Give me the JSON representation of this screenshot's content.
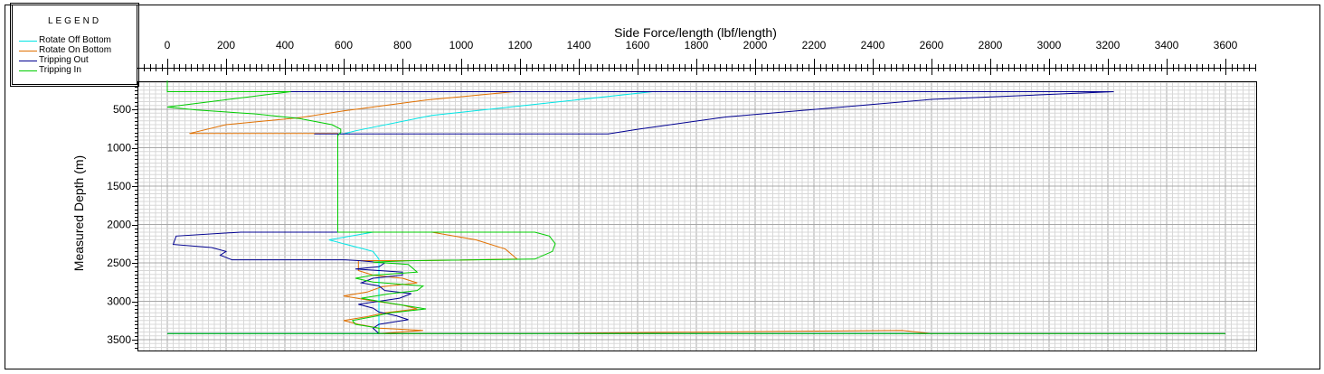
{
  "chart_data": {
    "type": "line",
    "title": "Side Force/length (lbf/length)",
    "xlabel": "Side Force/length (lbf/length)",
    "ylabel": "Measured Depth (m)",
    "x_axis_position": "top",
    "y_inverted": true,
    "xlim": [
      -80,
      3720
    ],
    "ylim": [
      3600,
      120
    ],
    "x_ticks": [
      0,
      200,
      400,
      600,
      800,
      1000,
      1200,
      1400,
      1600,
      1800,
      2000,
      2200,
      2400,
      2600,
      2800,
      3000,
      3200,
      3400,
      3600
    ],
    "y_ticks": [
      500,
      1000,
      1500,
      2000,
      2500,
      3000,
      3500
    ],
    "grid": true,
    "legend": {
      "title": "LEGEND",
      "placement": "top-left, outside plot",
      "entries": [
        "Rotate Off Bottom",
        "Rotate On Bottom",
        "Tripping Out",
        "Tripping In"
      ]
    },
    "series": [
      {
        "name": "Rotate Off Bottom",
        "color": "#00e5e5",
        "points": [
          [
            0,
            125
          ],
          [
            0,
            270
          ],
          [
            140,
            270
          ],
          [
            620,
            270
          ],
          [
            1650,
            270
          ],
          [
            900,
            580
          ],
          [
            640,
            780
          ],
          [
            600,
            820
          ],
          [
            580,
            820
          ],
          [
            580,
            2100
          ],
          [
            700,
            2100
          ],
          [
            550,
            2200
          ],
          [
            600,
            2250
          ],
          [
            700,
            2350
          ],
          [
            720,
            2450
          ],
          [
            720,
            2550
          ],
          [
            720,
            2800
          ],
          [
            720,
            3000
          ],
          [
            720,
            3200
          ],
          [
            720,
            3350
          ],
          [
            720,
            3420
          ],
          [
            0,
            3420
          ],
          [
            1200,
            3420
          ],
          [
            2450,
            3420
          ],
          [
            3600,
            3420
          ]
        ]
      },
      {
        "name": "Rotate On Bottom",
        "color": "#e07000",
        "points": [
          [
            1180,
            270
          ],
          [
            880,
            380
          ],
          [
            600,
            520
          ],
          [
            450,
            610
          ],
          [
            200,
            700
          ],
          [
            75,
            815
          ],
          [
            580,
            815
          ],
          [
            580,
            2100
          ],
          [
            900,
            2100
          ],
          [
            1050,
            2200
          ],
          [
            1150,
            2320
          ],
          [
            1190,
            2450
          ],
          [
            870,
            2470
          ],
          [
            650,
            2470
          ],
          [
            650,
            2600
          ],
          [
            700,
            2660
          ],
          [
            800,
            2700
          ],
          [
            850,
            2760
          ],
          [
            730,
            2810
          ],
          [
            680,
            2880
          ],
          [
            600,
            2930
          ],
          [
            690,
            2990
          ],
          [
            800,
            3050
          ],
          [
            850,
            3100
          ],
          [
            740,
            3150
          ],
          [
            680,
            3200
          ],
          [
            600,
            3250
          ],
          [
            650,
            3300
          ],
          [
            720,
            3350
          ],
          [
            870,
            3380
          ],
          [
            720,
            3420
          ],
          [
            1200,
            3420
          ],
          [
            2500,
            3380
          ],
          [
            2600,
            3420
          ],
          [
            3600,
            3420
          ]
        ]
      },
      {
        "name": "Tripping Out",
        "color": "#000090",
        "points": [
          [
            30,
            270
          ],
          [
            200,
            270
          ],
          [
            3220,
            270
          ],
          [
            2600,
            370
          ],
          [
            1900,
            600
          ],
          [
            1600,
            760
          ],
          [
            1500,
            820
          ],
          [
            950,
            820
          ],
          [
            600,
            820
          ],
          [
            500,
            820
          ],
          [
            580,
            820
          ],
          [
            580,
            2100
          ],
          [
            250,
            2100
          ],
          [
            30,
            2150
          ],
          [
            20,
            2260
          ],
          [
            150,
            2300
          ],
          [
            200,
            2350
          ],
          [
            180,
            2400
          ],
          [
            220,
            2460
          ],
          [
            600,
            2460
          ],
          [
            650,
            2470
          ],
          [
            740,
            2500
          ],
          [
            720,
            2550
          ],
          [
            640,
            2580
          ],
          [
            800,
            2620
          ],
          [
            800,
            2660
          ],
          [
            700,
            2700
          ],
          [
            660,
            2760
          ],
          [
            720,
            2800
          ],
          [
            740,
            2860
          ],
          [
            830,
            2900
          ],
          [
            790,
            2960
          ],
          [
            720,
            3000
          ],
          [
            650,
            3040
          ],
          [
            700,
            3090
          ],
          [
            720,
            3140
          ],
          [
            780,
            3190
          ],
          [
            820,
            3240
          ],
          [
            720,
            3300
          ],
          [
            700,
            3350
          ],
          [
            720,
            3420
          ],
          [
            0,
            3420
          ],
          [
            3600,
            3420
          ]
        ]
      },
      {
        "name": "Tripping In",
        "color": "#00cc00",
        "points": [
          [
            0,
            125
          ],
          [
            0,
            270
          ],
          [
            420,
            270
          ],
          [
            0,
            470
          ],
          [
            100,
            510
          ],
          [
            300,
            560
          ],
          [
            450,
            620
          ],
          [
            560,
            700
          ],
          [
            590,
            760
          ],
          [
            590,
            800
          ],
          [
            580,
            840
          ],
          [
            580,
            2100
          ],
          [
            1250,
            2100
          ],
          [
            1300,
            2150
          ],
          [
            1320,
            2250
          ],
          [
            1310,
            2350
          ],
          [
            1250,
            2450
          ],
          [
            840,
            2470
          ],
          [
            700,
            2490
          ],
          [
            820,
            2520
          ],
          [
            850,
            2620
          ],
          [
            700,
            2660
          ],
          [
            640,
            2700
          ],
          [
            700,
            2750
          ],
          [
            870,
            2800
          ],
          [
            850,
            2860
          ],
          [
            760,
            2900
          ],
          [
            660,
            2960
          ],
          [
            720,
            3000
          ],
          [
            800,
            3050
          ],
          [
            880,
            3100
          ],
          [
            760,
            3150
          ],
          [
            700,
            3200
          ],
          [
            630,
            3250
          ],
          [
            640,
            3300
          ],
          [
            720,
            3350
          ],
          [
            720,
            3420
          ],
          [
            0,
            3420
          ],
          [
            3600,
            3420
          ]
        ]
      }
    ]
  }
}
